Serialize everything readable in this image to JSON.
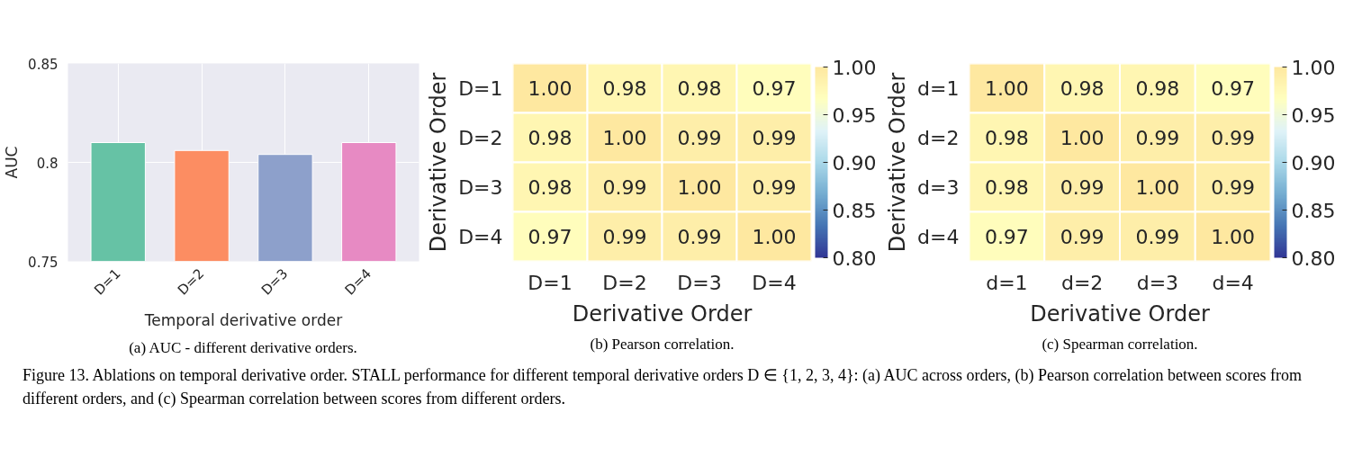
{
  "chart_data": [
    {
      "type": "bar",
      "xlabel": "Temporal derivative order",
      "ylabel": "AUC",
      "categories": [
        "D=1",
        "D=2",
        "D=3",
        "D=4"
      ],
      "values": [
        0.81,
        0.806,
        0.804,
        0.81
      ],
      "colors": [
        "#66c2a5",
        "#fc8d62",
        "#8da0cb",
        "#e78ac3"
      ],
      "ylim": [
        0.75,
        0.85
      ],
      "yticks": [
        0.75,
        0.8,
        0.85
      ],
      "grid": true,
      "annotations": [
        "(a) AUC - different derivative orders.",
        "Figure 13. Ablations on temporal derivative order. STALL performance for different temporal derivative orders D ∈ {1, 2, 3, 4}: (a) AUC across orders, (b) Pearson correlation between scores from different orders, and (c) Spearman correlation between scores from different orders."
      ]
    },
    {
      "type": "heatmap",
      "xlabel": "Derivative Order",
      "ylabel": "Derivative Order",
      "categories": [
        "D=1",
        "D=2",
        "D=3",
        "D=4"
      ],
      "y_categories": [
        "D=1",
        "D=2",
        "D=3",
        "D=4"
      ],
      "cells": [
        [
          1.0,
          0.98,
          0.98,
          0.97
        ],
        [
          0.98,
          1.0,
          0.99,
          0.99
        ],
        [
          0.98,
          0.99,
          1.0,
          0.99
        ],
        [
          0.97,
          0.99,
          0.99,
          1.0
        ]
      ],
      "cell_labels": [
        [
          "1.00",
          "0.98",
          "0.98",
          "0.97"
        ],
        [
          "0.98",
          "1.00",
          "0.99",
          "0.99"
        ],
        [
          "0.98",
          "0.99",
          "1.00",
          "0.99"
        ],
        [
          "0.97",
          "0.99",
          "0.99",
          "1.00"
        ]
      ],
      "clim": [
        0.8,
        1.0
      ],
      "cticks": [
        {
          "value": 0.8,
          "label": "0.80"
        },
        {
          "value": 0.85,
          "label": "0.85"
        },
        {
          "value": 0.9,
          "label": "0.90"
        },
        {
          "value": 0.95,
          "label": "0.95"
        },
        {
          "value": 1.0,
          "label": "1.00"
        }
      ],
      "annotations": [
        "(b) Pearson correlation."
      ]
    },
    {
      "type": "heatmap",
      "xlabel": "Derivative Order",
      "ylabel": "Derivative Order",
      "categories": [
        "d=1",
        "d=2",
        "d=3",
        "d=4"
      ],
      "y_categories": [
        "d=1",
        "d=2",
        "d=3",
        "d=4"
      ],
      "cells": [
        [
          1.0,
          0.98,
          0.98,
          0.97
        ],
        [
          0.98,
          1.0,
          0.99,
          0.99
        ],
        [
          0.98,
          0.99,
          1.0,
          0.99
        ],
        [
          0.97,
          0.99,
          0.99,
          1.0
        ]
      ],
      "cell_labels": [
        [
          "1.00",
          "0.98",
          "0.98",
          "0.97"
        ],
        [
          "0.98",
          "1.00",
          "0.99",
          "0.99"
        ],
        [
          "0.98",
          "0.99",
          "1.00",
          "0.99"
        ],
        [
          "0.97",
          "0.99",
          "0.99",
          "1.00"
        ]
      ],
      "clim": [
        0.8,
        1.0
      ],
      "cticks": [
        {
          "value": 0.8,
          "label": "0.80"
        },
        {
          "value": 0.85,
          "label": "0.85"
        },
        {
          "value": 0.9,
          "label": "0.90"
        },
        {
          "value": 0.95,
          "label": "0.95"
        },
        {
          "value": 1.0,
          "label": "1.00"
        }
      ],
      "annotations": [
        "(c) Spearman correlation."
      ]
    }
  ]
}
